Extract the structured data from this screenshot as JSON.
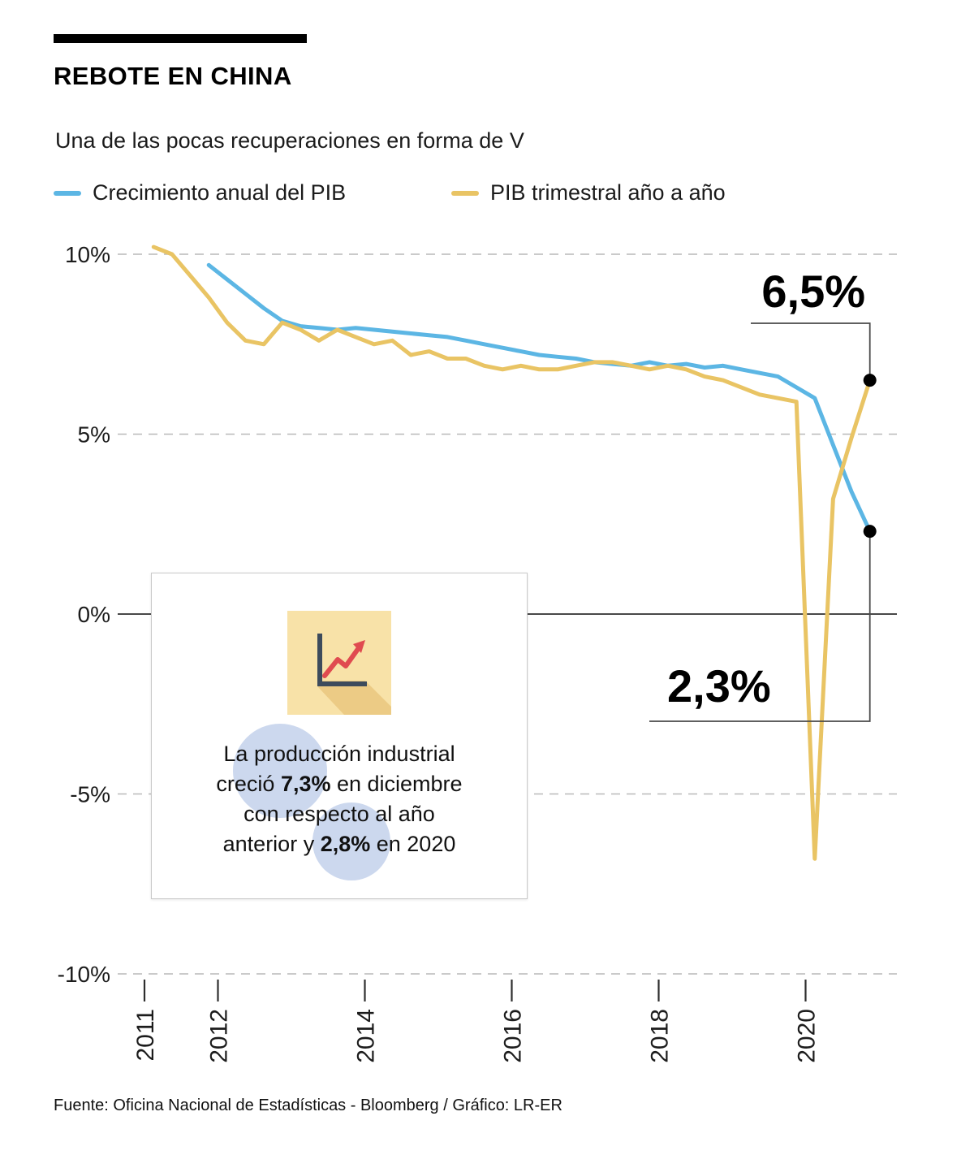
{
  "header": {
    "title": "REBOTE EN CHINA",
    "subtitle": "Una de las pocas recuperaciones en forma de V"
  },
  "legend": [
    {
      "label": "Crecimiento anual del PIB"
    },
    {
      "label": "PIB trimestral año a año"
    }
  ],
  "callout": {
    "lines": [
      [
        {
          "text": "La producción industrial"
        }
      ],
      [
        {
          "text": "creció "
        },
        {
          "text": "7,3%",
          "bold": true
        },
        {
          "text": " en diciembre"
        }
      ],
      [
        {
          "text": "con respecto al año"
        }
      ],
      [
        {
          "text": "anterior y "
        },
        {
          "text": "2,8%",
          "bold": true
        },
        {
          "text": " en 2020"
        }
      ]
    ]
  },
  "footer": {
    "source": "Fuente: Oficina Nacional de Estadísticas - Bloomberg / Gráfico: LR-ER"
  },
  "chart_data": {
    "type": "line",
    "title": "REBOTE EN CHINA",
    "subtitle": "Una de las pocas recuperaciones en forma de V",
    "xlabel": "",
    "ylabel": "",
    "xlim": [
      2011,
      2021
    ],
    "ylim": [
      -10,
      10
    ],
    "grid": "horizontal dashed",
    "legend_position": "top",
    "yticks": [
      {
        "value": 10,
        "label": "10%"
      },
      {
        "value": 5,
        "label": "5%"
      },
      {
        "value": 0,
        "label": "0%"
      },
      {
        "value": -5,
        "label": "-5%"
      },
      {
        "value": -10,
        "label": "-10%"
      }
    ],
    "xticks": [
      {
        "value": 2011,
        "label": "2011"
      },
      {
        "value": 2012,
        "label": "2012"
      },
      {
        "value": 2014,
        "label": "2014"
      },
      {
        "value": 2016,
        "label": "2016"
      },
      {
        "value": 2018,
        "label": "2018"
      },
      {
        "value": 2020,
        "label": "2020"
      }
    ],
    "series": [
      {
        "id": "annual",
        "name": "Crecimiento anual del PIB",
        "color": "#5cb6e4",
        "end_label": "2,3%",
        "x": [
          2011.875,
          2012.125,
          2012.375,
          2012.625,
          2012.875,
          2013.125,
          2013.375,
          2013.625,
          2013.875,
          2014.125,
          2014.375,
          2014.625,
          2014.875,
          2015.125,
          2015.375,
          2015.625,
          2015.875,
          2016.125,
          2016.375,
          2016.625,
          2016.875,
          2017.125,
          2017.375,
          2017.625,
          2017.875,
          2018.125,
          2018.375,
          2018.625,
          2018.875,
          2019.125,
          2019.375,
          2019.625,
          2019.875,
          2020.125,
          2020.375,
          2020.625,
          2020.875
        ],
        "values": [
          9.7,
          9.3,
          8.9,
          8.5,
          8.15,
          8.0,
          7.95,
          7.9,
          7.95,
          7.9,
          7.85,
          7.8,
          7.75,
          7.7,
          7.6,
          7.5,
          7.4,
          7.3,
          7.2,
          7.15,
          7.1,
          7.0,
          6.95,
          6.9,
          7.0,
          6.9,
          6.95,
          6.85,
          6.9,
          6.8,
          6.7,
          6.6,
          6.3,
          6.0,
          4.7,
          3.4,
          2.3
        ]
      },
      {
        "id": "quarterly",
        "name": "PIB trimestral año a año",
        "color": "#e9c464",
        "end_label": "6,5%",
        "x": [
          2011.125,
          2011.375,
          2011.625,
          2011.875,
          2012.125,
          2012.375,
          2012.625,
          2012.875,
          2013.125,
          2013.375,
          2013.625,
          2013.875,
          2014.125,
          2014.375,
          2014.625,
          2014.875,
          2015.125,
          2015.375,
          2015.625,
          2015.875,
          2016.125,
          2016.375,
          2016.625,
          2016.875,
          2017.125,
          2017.375,
          2017.625,
          2017.875,
          2018.125,
          2018.375,
          2018.625,
          2018.875,
          2019.125,
          2019.375,
          2019.625,
          2019.875,
          2020.125,
          2020.375,
          2020.625,
          2020.875
        ],
        "values": [
          10.2,
          10.0,
          9.4,
          8.8,
          8.1,
          7.6,
          7.5,
          8.1,
          7.9,
          7.6,
          7.9,
          7.7,
          7.5,
          7.6,
          7.2,
          7.3,
          7.1,
          7.1,
          6.9,
          6.8,
          6.9,
          6.8,
          6.8,
          6.9,
          7.0,
          7.0,
          6.9,
          6.8,
          6.9,
          6.8,
          6.6,
          6.5,
          6.3,
          6.1,
          6.0,
          5.9,
          -6.8,
          3.2,
          4.9,
          6.5
        ]
      }
    ]
  }
}
